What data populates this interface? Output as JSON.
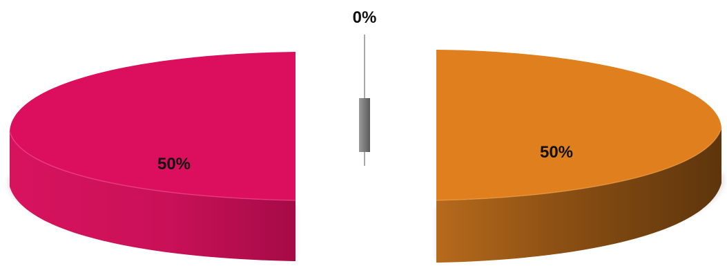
{
  "chart_data": {
    "type": "pie",
    "style": "3d-exploded",
    "categories": [
      "",
      "",
      ""
    ],
    "values": [
      50,
      50,
      0
    ],
    "data_labels": [
      "50%",
      "50%",
      "0%"
    ],
    "colors": [
      "#DC0F5F",
      "#E07F1E",
      "#7A7A7A"
    ],
    "title": "",
    "legend": "none"
  }
}
